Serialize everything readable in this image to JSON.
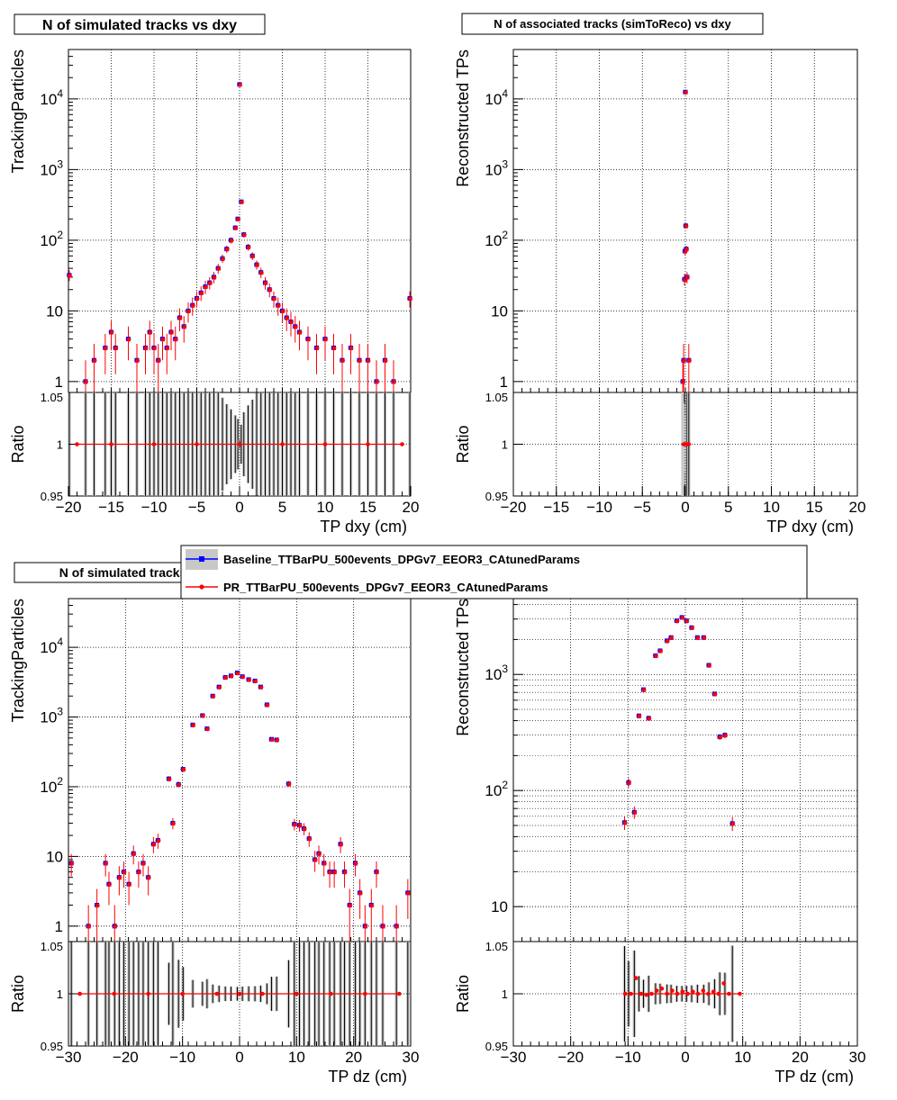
{
  "legend": {
    "entries": [
      {
        "label": "Baseline_TTBarPU_500events_DPGv7_EEOR3_CAtunedParams",
        "color": "#0000ff",
        "marker": "square"
      },
      {
        "label": "PR_TTBarPU_500events_DPGv7_EEOR3_CAtunedParams",
        "color": "#ff0000",
        "marker": "circle"
      }
    ]
  },
  "colors": {
    "baseline": "#0000ff",
    "pr": "#ff0000",
    "ratio_band": "#c8c8c8",
    "frame": "#000000"
  },
  "chart_data": [
    {
      "id": "p1",
      "type": "scatter",
      "title": "N of simulated tracks vs dxy",
      "xlabel": "TP dxy (cm)",
      "ylabel": "TrackingParticles",
      "ratio_ylabel": "Ratio",
      "xlim": [
        -20,
        20
      ],
      "ylim": [
        0.7,
        50000
      ],
      "ylog": true,
      "ratio_ylim": [
        0.95,
        1.05
      ],
      "x_ticks": [
        -20,
        -15,
        -10,
        -5,
        0,
        5,
        10,
        15,
        20
      ],
      "x_tick_labels": [
        "−20",
        "−15",
        "−10",
        "−5",
        "0",
        "5",
        "10",
        "15",
        "20"
      ],
      "y_ticks": [
        1,
        10,
        100,
        1000,
        10000
      ],
      "y_tick_labels": [
        "1",
        "10",
        "10^2",
        "10^3",
        "10^4"
      ],
      "ratio_ticks": [
        0.95,
        1,
        1.05
      ],
      "ratio_tick_labels": [
        "0.95",
        "1",
        "1.05"
      ],
      "grid": true,
      "legend": "none",
      "points": [
        [
          -19.9,
          32
        ],
        [
          -18,
          1
        ],
        [
          -17,
          2
        ],
        [
          -15.7,
          3
        ],
        [
          -15,
          5
        ],
        [
          -14.5,
          3
        ],
        [
          -13,
          4
        ],
        [
          -12,
          2
        ],
        [
          -11,
          3
        ],
        [
          -10.5,
          5
        ],
        [
          -10,
          3
        ],
        [
          -9.5,
          2
        ],
        [
          -9,
          4
        ],
        [
          -8.5,
          3
        ],
        [
          -8,
          5
        ],
        [
          -7.5,
          4
        ],
        [
          -7,
          8
        ],
        [
          -6.5,
          6
        ],
        [
          -6,
          10
        ],
        [
          -5.5,
          12
        ],
        [
          -5,
          15
        ],
        [
          -4.5,
          18
        ],
        [
          -4,
          22
        ],
        [
          -3.5,
          25
        ],
        [
          -3,
          30
        ],
        [
          -2.5,
          40
        ],
        [
          -2,
          55
        ],
        [
          -1.5,
          75
        ],
        [
          -1,
          100
        ],
        [
          -0.5,
          150
        ],
        [
          -0.2,
          200
        ],
        [
          0,
          16000
        ],
        [
          0.2,
          350
        ],
        [
          0.5,
          120
        ],
        [
          1,
          80
        ],
        [
          1.5,
          60
        ],
        [
          2,
          45
        ],
        [
          2.5,
          35
        ],
        [
          3,
          25
        ],
        [
          3.5,
          20
        ],
        [
          4,
          15
        ],
        [
          4.5,
          12
        ],
        [
          5,
          10
        ],
        [
          5.5,
          8
        ],
        [
          6,
          7
        ],
        [
          6.5,
          6
        ],
        [
          7,
          5
        ],
        [
          8,
          4
        ],
        [
          9,
          3
        ],
        [
          10,
          4
        ],
        [
          11,
          3
        ],
        [
          12,
          2
        ],
        [
          13,
          3
        ],
        [
          14,
          2
        ],
        [
          15,
          2
        ],
        [
          16,
          1
        ],
        [
          17,
          2
        ],
        [
          18,
          1
        ],
        [
          19.9,
          15
        ]
      ],
      "ratio_points": [
        [
          -19,
          1
        ],
        [
          -15,
          1
        ],
        [
          -10,
          1
        ],
        [
          -5,
          1
        ],
        [
          0,
          1
        ],
        [
          5,
          1
        ],
        [
          10,
          1
        ],
        [
          15,
          1
        ],
        [
          19,
          1
        ]
      ]
    },
    {
      "id": "p2",
      "type": "scatter",
      "title": "N of associated tracks (simToReco) vs dxy",
      "xlabel": "TP dxy (cm)",
      "ylabel": "Reconstructed TPs",
      "ratio_ylabel": "Ratio",
      "xlim": [
        -20,
        20
      ],
      "ylim": [
        0.7,
        50000
      ],
      "ylog": true,
      "ratio_ylim": [
        0.95,
        1.05
      ],
      "x_ticks": [
        -20,
        -15,
        -10,
        -5,
        0,
        5,
        10,
        15,
        20
      ],
      "x_tick_labels": [
        "−20",
        "−15",
        "−10",
        "−5",
        "0",
        "5",
        "10",
        "15",
        "20"
      ],
      "y_ticks": [
        1,
        10,
        100,
        1000,
        10000
      ],
      "y_tick_labels": [
        "1",
        "10",
        "10^2",
        "10^3",
        "10^4"
      ],
      "ratio_ticks": [
        0.95,
        1,
        1.05
      ],
      "ratio_tick_labels": [
        "0.95",
        "1",
        "1.05"
      ],
      "grid": true,
      "legend": "none",
      "points": [
        [
          -0.3,
          1
        ],
        [
          -0.2,
          2
        ],
        [
          -0.1,
          28
        ],
        [
          -0.05,
          70
        ],
        [
          0,
          12500
        ],
        [
          0.05,
          160
        ],
        [
          0.1,
          75
        ],
        [
          0.2,
          30
        ],
        [
          0.4,
          2
        ]
      ],
      "ratio_points": [
        [
          -0.2,
          1
        ],
        [
          0,
          1
        ],
        [
          0.2,
          1
        ],
        [
          0.4,
          1
        ]
      ]
    },
    {
      "id": "p3",
      "type": "scatter",
      "title": "N of simulated tracks vs dz",
      "xlabel": "TP dz (cm)",
      "ylabel": "TrackingParticles",
      "ratio_ylabel": "Ratio",
      "xlim": [
        -30,
        30
      ],
      "ylim": [
        0.6,
        50000
      ],
      "ylog": true,
      "ratio_ylim": [
        0.95,
        1.05
      ],
      "x_ticks": [
        -30,
        -20,
        -10,
        0,
        10,
        20,
        30
      ],
      "x_tick_labels": [
        "−30",
        "−20",
        "−10",
        "0",
        "10",
        "20",
        "30"
      ],
      "y_ticks": [
        1,
        10,
        100,
        1000,
        10000
      ],
      "y_tick_labels": [
        "1",
        "10",
        "10^2",
        "10^3",
        "10^4"
      ],
      "ratio_ticks": [
        0.95,
        1,
        1.05
      ],
      "ratio_tick_labels": [
        "0.95",
        "1",
        "1.05"
      ],
      "grid": true,
      "legend": "none",
      "points": [
        [
          -29.5,
          8
        ],
        [
          -26.5,
          1
        ],
        [
          -25,
          2
        ],
        [
          -23.5,
          8
        ],
        [
          -22.9,
          4
        ],
        [
          -21.9,
          1
        ],
        [
          -21.1,
          5
        ],
        [
          -20.3,
          6
        ],
        [
          -19.4,
          4
        ],
        [
          -18.6,
          11
        ],
        [
          -17.7,
          6
        ],
        [
          -16.9,
          8
        ],
        [
          -16,
          5
        ],
        [
          -15.1,
          15
        ],
        [
          -14.3,
          17
        ],
        [
          -12.4,
          130
        ],
        [
          -11.7,
          30
        ],
        [
          -10.7,
          108
        ],
        [
          -9.9,
          178
        ],
        [
          -8.2,
          770
        ],
        [
          -6.5,
          1050
        ],
        [
          -5.7,
          680
        ],
        [
          -4.7,
          2000
        ],
        [
          -3.6,
          2700
        ],
        [
          -2.5,
          3700
        ],
        [
          -1.5,
          3900
        ],
        [
          -0.4,
          4300
        ],
        [
          0.5,
          3800
        ],
        [
          1.6,
          3450
        ],
        [
          2.7,
          3300
        ],
        [
          3.7,
          2700
        ],
        [
          4.8,
          1500
        ],
        [
          5.6,
          480
        ],
        [
          6.5,
          470
        ],
        [
          8.6,
          110
        ],
        [
          9.6,
          29
        ],
        [
          10.5,
          28
        ],
        [
          11.3,
          25
        ],
        [
          12.2,
          18
        ],
        [
          13.2,
          9
        ],
        [
          13.9,
          11
        ],
        [
          14.8,
          8
        ],
        [
          15.8,
          6
        ],
        [
          16.6,
          6
        ],
        [
          17.7,
          15
        ],
        [
          18.4,
          6
        ],
        [
          19.3,
          2
        ],
        [
          20.3,
          8
        ],
        [
          21.1,
          3
        ],
        [
          22,
          1
        ],
        [
          23.1,
          2
        ],
        [
          24,
          6
        ],
        [
          25.1,
          1
        ],
        [
          27.5,
          1
        ],
        [
          29.5,
          3
        ]
      ],
      "ratio_points": [
        [
          -28,
          1
        ],
        [
          -22,
          1
        ],
        [
          -16,
          1
        ],
        [
          -10,
          1
        ],
        [
          -4,
          1
        ],
        [
          0,
          1
        ],
        [
          4,
          1
        ],
        [
          10,
          1
        ],
        [
          16,
          1
        ],
        [
          22,
          1
        ],
        [
          28,
          1
        ]
      ]
    },
    {
      "id": "p4",
      "type": "scatter",
      "title": "",
      "xlabel": "TP dz (cm)",
      "ylabel": "Reconstructed TPs",
      "ratio_ylabel": "Ratio",
      "xlim": [
        -30,
        30
      ],
      "ylim": [
        5,
        4500
      ],
      "ylog": true,
      "ratio_ylim": [
        0.95,
        1.05
      ],
      "x_ticks": [
        -30,
        -20,
        -10,
        0,
        10,
        20,
        30
      ],
      "x_tick_labels": [
        "−30",
        "−20",
        "−10",
        "0",
        "10",
        "20",
        "30"
      ],
      "y_ticks": [
        10,
        100,
        1000
      ],
      "y_tick_labels": [
        "10",
        "10^2",
        "10^3"
      ],
      "ratio_ticks": [
        0.95,
        1,
        1.05
      ],
      "ratio_tick_labels": [
        "0.95",
        "1",
        "1.05"
      ],
      "grid": true,
      "legend": "none",
      "points": [
        [
          -10.6,
          53
        ],
        [
          -9.9,
          117
        ],
        [
          -8.9,
          65
        ],
        [
          -8.1,
          440
        ],
        [
          -7.3,
          740
        ],
        [
          -6.4,
          420
        ],
        [
          -5.2,
          1450
        ],
        [
          -4.4,
          1600
        ],
        [
          -3.2,
          1950
        ],
        [
          -2.5,
          2080
        ],
        [
          -1.5,
          2900
        ],
        [
          -0.6,
          3100
        ],
        [
          0.2,
          2900
        ],
        [
          1.1,
          2530
        ],
        [
          2.1,
          2080
        ],
        [
          3.2,
          2080
        ],
        [
          4.1,
          1200
        ],
        [
          5.1,
          680
        ],
        [
          6,
          290
        ],
        [
          6.9,
          300
        ],
        [
          8.2,
          52
        ]
      ],
      "ratio_points": [
        [
          -10.5,
          1
        ],
        [
          -9.5,
          1
        ],
        [
          -8.6,
          1.015
        ],
        [
          -7.7,
          1
        ],
        [
          -6.8,
          0.999
        ],
        [
          -5.9,
          1
        ],
        [
          -5,
          1.003
        ],
        [
          -4.1,
          1.005
        ],
        [
          -3.2,
          1
        ],
        [
          -2.3,
          1.003
        ],
        [
          -1.4,
          1
        ],
        [
          -0.5,
          1.002
        ],
        [
          0.4,
          1
        ],
        [
          1.3,
          1.002
        ],
        [
          2.2,
          1
        ],
        [
          3.1,
          1.003
        ],
        [
          4,
          1
        ],
        [
          4.9,
          1.002
        ],
        [
          5.8,
          1
        ],
        [
          6.7,
          1.01
        ],
        [
          7.6,
          1
        ],
        [
          9.5,
          1
        ]
      ]
    }
  ]
}
